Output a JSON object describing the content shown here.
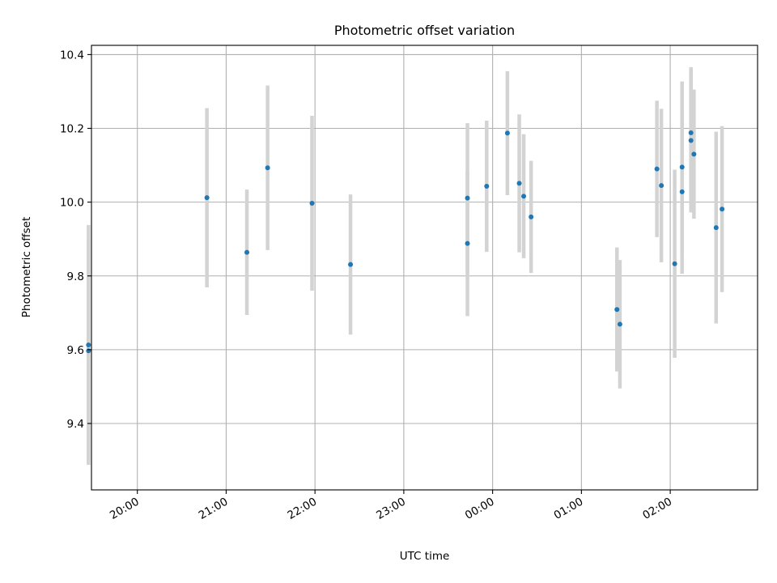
{
  "chart_data": {
    "type": "scatter",
    "title": "Photometric offset variation",
    "xlabel": "UTC time",
    "ylabel": "Photometric offset",
    "x_tick_labels": [
      "20:00",
      "21:00",
      "22:00",
      "23:00",
      "00:00",
      "01:00",
      "02:00"
    ],
    "y_tick_labels": [
      "9.4",
      "9.6",
      "9.8",
      "10.0",
      "10.2",
      "10.4"
    ],
    "y_ticks": [
      9.4,
      9.6,
      9.8,
      10.0,
      10.2,
      10.4
    ],
    "xlim": [
      "19:29",
      "02:59"
    ],
    "ylim": [
      9.22,
      10.425
    ],
    "grid": true,
    "colors": {
      "points": "#1f77b4",
      "errorbars": "#d3d3d3",
      "grid": "#b0b0b0"
    },
    "points": [
      {
        "x": "19:27",
        "y": 9.597,
        "err": 0.3
      },
      {
        "x": "19:27",
        "y": 9.613,
        "err": 0.325
      },
      {
        "x": "20:47",
        "y": 10.012,
        "err": 0.243
      },
      {
        "x": "21:14",
        "y": 9.864,
        "err": 0.17
      },
      {
        "x": "21:28",
        "y": 10.093,
        "err": 0.223
      },
      {
        "x": "21:58",
        "y": 9.997,
        "err": 0.237
      },
      {
        "x": "22:24",
        "y": 9.831,
        "err": 0.19
      },
      {
        "x": "23:43",
        "y": 9.888,
        "err": 0.197
      },
      {
        "x": "23:43",
        "y": 10.011,
        "err": 0.203
      },
      {
        "x": "23:56",
        "y": 10.043,
        "err": 0.178
      },
      {
        "x": "00:10",
        "y": 10.187,
        "err": 0.168
      },
      {
        "x": "00:18",
        "y": 10.051,
        "err": 0.187
      },
      {
        "x": "00:21",
        "y": 10.016,
        "err": 0.168
      },
      {
        "x": "00:26",
        "y": 9.96,
        "err": 0.152
      },
      {
        "x": "01:24",
        "y": 9.709,
        "err": 0.168
      },
      {
        "x": "01:26",
        "y": 9.669,
        "err": 0.174
      },
      {
        "x": "01:51",
        "y": 10.09,
        "err": 0.185
      },
      {
        "x": "01:54",
        "y": 10.045,
        "err": 0.208
      },
      {
        "x": "02:03",
        "y": 9.833,
        "err": 0.255
      },
      {
        "x": "02:08",
        "y": 10.028,
        "err": 0.222
      },
      {
        "x": "02:08",
        "y": 10.095,
        "err": 0.232
      },
      {
        "x": "02:14",
        "y": 10.167,
        "err": 0.195
      },
      {
        "x": "02:14",
        "y": 10.188,
        "err": 0.178
      },
      {
        "x": "02:16",
        "y": 10.13,
        "err": 0.175
      },
      {
        "x": "02:31",
        "y": 9.931,
        "err": 0.26
      },
      {
        "x": "02:35",
        "y": 9.981,
        "err": 0.225
      }
    ]
  }
}
